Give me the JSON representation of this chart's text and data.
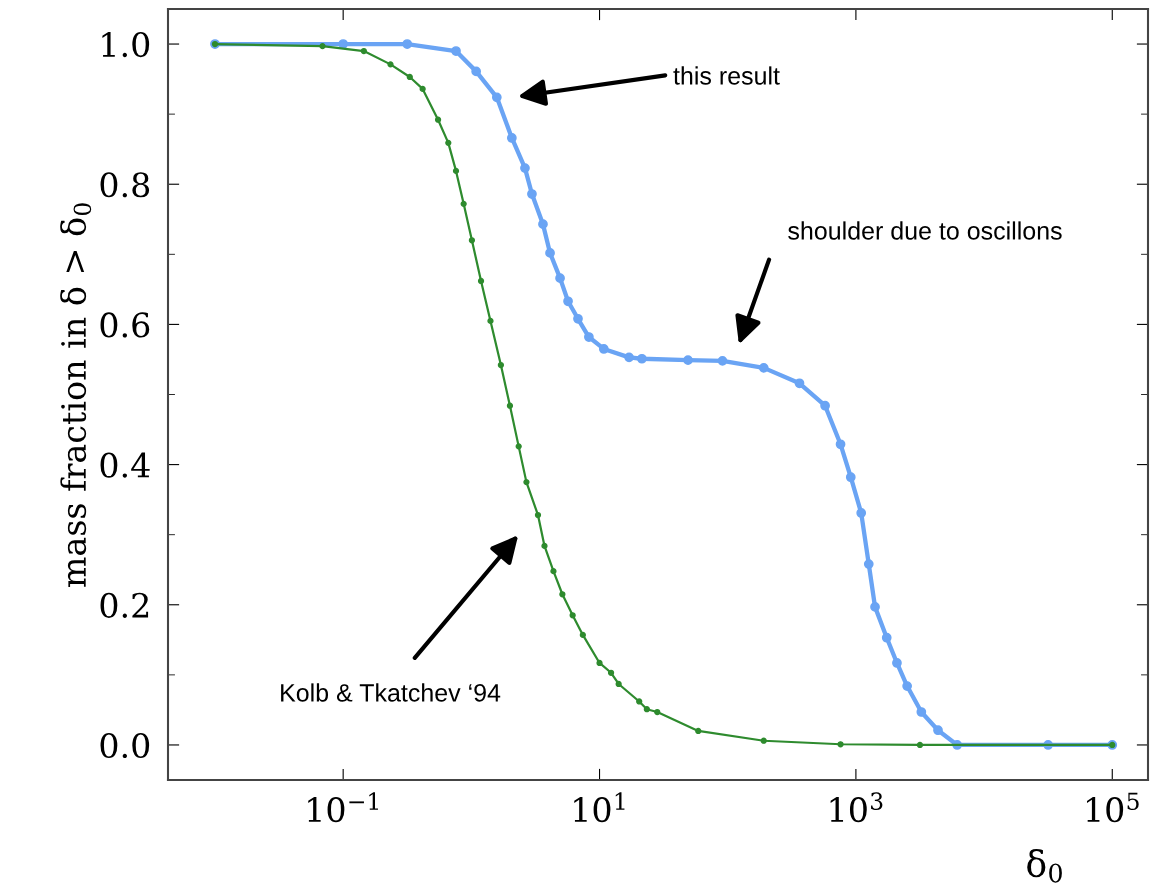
{
  "chart_data": {
    "type": "line",
    "xlabel": "δ$_{0}$",
    "ylabel": "mass fraction in δ > δ$_{0}$",
    "log": "x",
    "grid": false,
    "marker": "circle",
    "line_style": "solid",
    "xlim": [
      0.0043,
      190000
    ],
    "ylim": [
      -0.05,
      1.05
    ],
    "xticks": [
      {
        "value": 0.1,
        "label": "10$^{−1}$"
      },
      {
        "value": 10,
        "label": "10$^{1}$"
      },
      {
        "value": 1000,
        "label": "10$^{3}$"
      },
      {
        "value": 100000,
        "label": "10$^{5}$"
      }
    ],
    "yticks": [
      {
        "value": 0,
        "label": "0.0"
      },
      {
        "value": 0.2,
        "label": "0.2"
      },
      {
        "value": 0.4,
        "label": "0.4"
      },
      {
        "value": 0.6,
        "label": "0.6"
      },
      {
        "value": 0.8,
        "label": "0.8"
      },
      {
        "value": 1,
        "label": "1.0"
      }
    ],
    "series": [
      {
        "color": "#6aa4f4",
        "x": [
          0.01,
          0.1,
          0.316,
          0.759,
          1.09,
          1.58,
          2.07,
          2.62,
          2.97,
          3.62,
          4.11,
          4.92,
          5.68,
          6.79,
          8.26,
          10.8,
          17,
          21.4,
          49,
          91,
          191,
          363,
          575,
          759,
          912,
          1100,
          1260,
          1410,
          1740,
          2090,
          2510,
          3240,
          4370,
          6170,
          31600,
          100000
        ],
        "values": [
          1.0,
          1.0,
          1.0,
          0.99,
          0.961,
          0.924,
          0.866,
          0.823,
          0.786,
          0.743,
          0.702,
          0.666,
          0.633,
          0.608,
          0.582,
          0.565,
          0.553,
          0.551,
          0.549,
          0.548,
          0.538,
          0.516,
          0.484,
          0.429,
          0.382,
          0.331,
          0.258,
          0.197,
          0.153,
          0.117,
          0.084,
          0.047,
          0.021,
          0.0,
          0.0,
          0.0
        ]
      },
      {
        "color": "#2e8b2e",
        "x": [
          0.01,
          0.069,
          0.145,
          0.234,
          0.331,
          0.417,
          0.55,
          0.661,
          0.759,
          0.871,
          1.01,
          1.19,
          1.41,
          1.7,
          2.0,
          2.34,
          2.69,
          3.31,
          3.72,
          4.37,
          5.13,
          6.17,
          7.41,
          10,
          12.3,
          14.1,
          20.4,
          23.4,
          28.2,
          58.9,
          191,
          759,
          3160,
          100000
        ],
        "values": [
          1.0,
          0.997,
          0.99,
          0.971,
          0.953,
          0.936,
          0.892,
          0.859,
          0.819,
          0.772,
          0.72,
          0.662,
          0.605,
          0.542,
          0.484,
          0.426,
          0.375,
          0.328,
          0.284,
          0.248,
          0.215,
          0.185,
          0.157,
          0.117,
          0.103,
          0.087,
          0.062,
          0.051,
          0.047,
          0.02,
          0.006,
          0.001,
          0.0,
          0.0
        ]
      }
    ],
    "annotations": [
      "this result",
      "shoulder due to oscillons",
      "Kolb & Tkatchev ‘94"
    ]
  }
}
